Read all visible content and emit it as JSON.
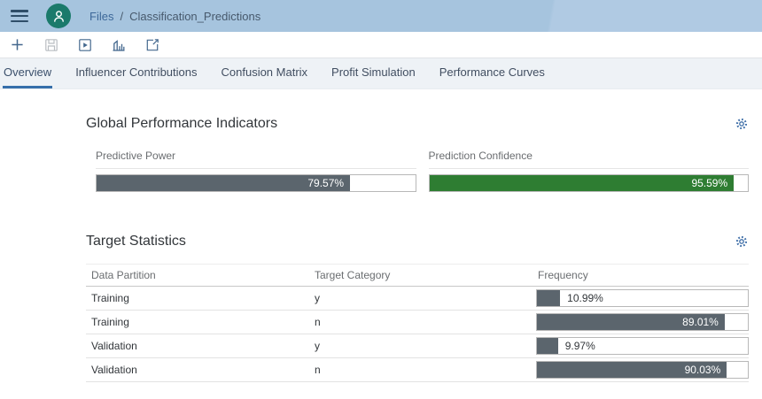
{
  "header": {
    "breadcrumb": {
      "root": "Files",
      "separator": "/",
      "current": "Classification_Predictions"
    }
  },
  "toolbar": {
    "icons": [
      {
        "name": "add-icon",
        "disabled": false
      },
      {
        "name": "save-icon",
        "disabled": true
      },
      {
        "name": "run-icon",
        "disabled": false
      },
      {
        "name": "simulation-chart-icon",
        "disabled": false
      },
      {
        "name": "share-icon",
        "disabled": false
      }
    ]
  },
  "tabs": [
    {
      "label": "Overview",
      "active": true
    },
    {
      "label": "Influencer Contributions",
      "active": false
    },
    {
      "label": "Confusion Matrix",
      "active": false
    },
    {
      "label": "Profit Simulation",
      "active": false
    },
    {
      "label": "Performance Curves",
      "active": false
    }
  ],
  "kpi_section": {
    "title": "Global Performance Indicators",
    "items": [
      {
        "label": "Predictive Power",
        "value": "79.57%",
        "percent": 79.57,
        "color": "#5b656d"
      },
      {
        "label": "Prediction Confidence",
        "value": "95.59%",
        "percent": 95.59,
        "color": "#2e7d32"
      }
    ]
  },
  "target_section": {
    "title": "Target Statistics",
    "columns": [
      "Data Partition",
      "Target Category",
      "Frequency"
    ],
    "bar_color": "#5b656d",
    "rows": [
      {
        "partition": "Training",
        "category": "y",
        "value": "10.99%",
        "percent": 10.99
      },
      {
        "partition": "Training",
        "category": "n",
        "value": "89.01%",
        "percent": 89.01
      },
      {
        "partition": "Validation",
        "category": "y",
        "value": "9.97%",
        "percent": 9.97
      },
      {
        "partition": "Validation",
        "category": "n",
        "value": "90.03%",
        "percent": 90.03
      }
    ]
  },
  "colors": {
    "header_bg": "#a9c7e1",
    "avatar_teal": "#1b7a6b",
    "accent_blue": "#366faa",
    "bar_gray": "#5b656d",
    "bar_green": "#2e7d32",
    "icon_blue": "#44688e"
  }
}
